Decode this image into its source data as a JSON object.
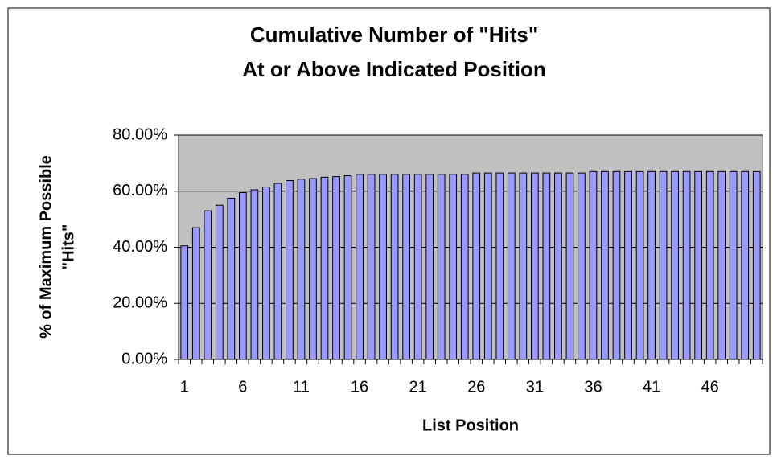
{
  "chart_data": {
    "type": "bar",
    "title": [
      "Cumulative Number of \"Hits\"",
      "At or Above Indicated Position"
    ],
    "x_label": "List Position",
    "y_label": [
      "% of Maximum Possible",
      "\"Hits\""
    ],
    "categories": [
      "1",
      null,
      null,
      null,
      null,
      "6",
      null,
      null,
      null,
      null,
      "11",
      null,
      null,
      null,
      null,
      "16",
      null,
      null,
      null,
      null,
      "21",
      null,
      null,
      null,
      null,
      "26",
      null,
      null,
      null,
      null,
      "31",
      null,
      null,
      null,
      null,
      "36",
      null,
      null,
      null,
      null,
      "41",
      null,
      null,
      null,
      null,
      "46",
      null,
      null,
      null,
      null
    ],
    "values": [
      40.5,
      47,
      53,
      55,
      57.5,
      59.5,
      60.5,
      61.5,
      62.8,
      63.8,
      64.3,
      64.5,
      65,
      65.2,
      65.5,
      66,
      66,
      66,
      66,
      66,
      66,
      66,
      66,
      66,
      66,
      66.5,
      66.5,
      66.5,
      66.5,
      66.5,
      66.5,
      66.5,
      66.5,
      66.5,
      66.5,
      67,
      67,
      67,
      67,
      67,
      67,
      67,
      67,
      67,
      67,
      67,
      67,
      67,
      67,
      67
    ],
    "color": "#9999ff",
    "ylim": [
      0,
      80
    ],
    "yticks": [
      {
        "value": 0,
        "label": "0.00%"
      },
      {
        "value": 20,
        "label": "20.00%"
      },
      {
        "value": 40,
        "label": "40.00%"
      },
      {
        "value": 60,
        "label": "60.00%"
      },
      {
        "value": 80,
        "label": "80.00%"
      }
    ],
    "grid": true
  }
}
